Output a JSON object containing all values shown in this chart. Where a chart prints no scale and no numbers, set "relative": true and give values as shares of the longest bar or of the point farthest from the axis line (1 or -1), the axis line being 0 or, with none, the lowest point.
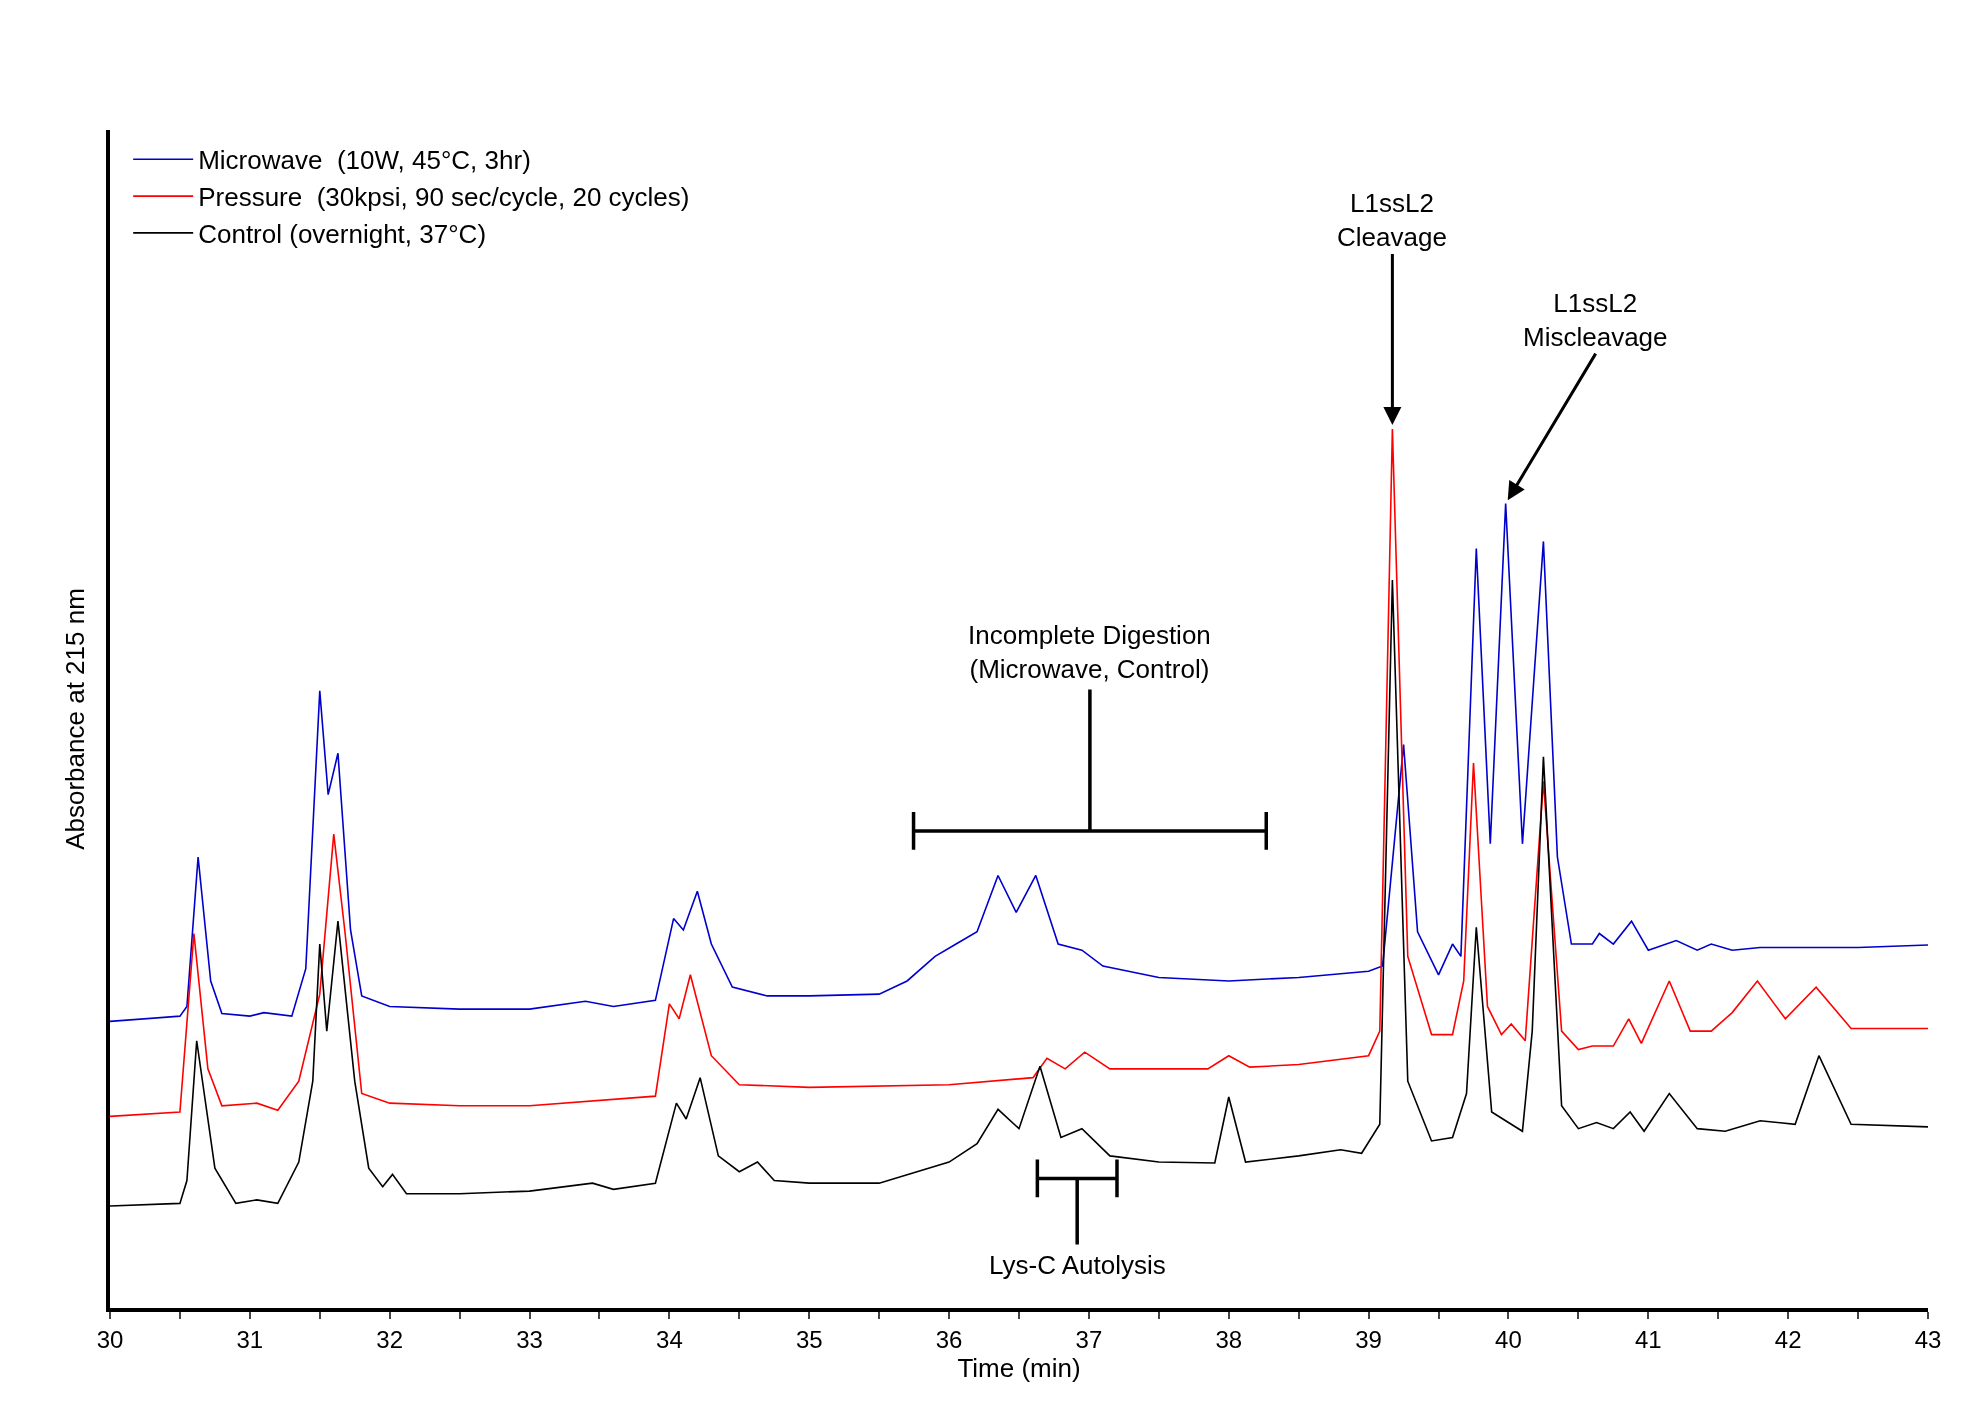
{
  "chart_data": {
    "type": "line",
    "relative": true,
    "xlabel": "Time (min)",
    "ylabel": "Absorbance at 215 nm",
    "xlim": [
      30,
      43
    ],
    "xticks": [
      30,
      {
        "value": 30.5,
        "label": null
      },
      31,
      {
        "value": 31.5,
        "label": null
      },
      32,
      {
        "value": 32.5,
        "label": null
      },
      33,
      {
        "value": 33.5,
        "label": null
      },
      34,
      {
        "value": 34.5,
        "label": null
      },
      35,
      {
        "value": 35.5,
        "label": null
      },
      36,
      {
        "value": 36.5,
        "label": null
      },
      37,
      {
        "value": 37.5,
        "label": null
      },
      38,
      {
        "value": 38.5,
        "label": null
      },
      39,
      {
        "value": 39.5,
        "label": null
      },
      40,
      {
        "value": 40.5,
        "label": null
      },
      41,
      {
        "value": 41.5,
        "label": null
      },
      42,
      {
        "value": 42.5,
        "label": null
      },
      43
    ],
    "legend": "top left",
    "marker": "none",
    "line_style": "solid",
    "series": [
      {
        "name": "Microwave  (10W, 45°C, 3hr)",
        "color": "#0000cc",
        "x": [
          30.0,
          30.5,
          30.55,
          30.63,
          30.72,
          30.8,
          31.0,
          31.1,
          31.3,
          31.4,
          31.5,
          31.56,
          31.63,
          31.72,
          31.8,
          32.0,
          32.5,
          33.0,
          33.4,
          33.6,
          33.9,
          34.03,
          34.1,
          34.2,
          34.3,
          34.45,
          34.7,
          35.0,
          35.5,
          35.7,
          35.9,
          36.05,
          36.2,
          36.35,
          36.48,
          36.62,
          36.78,
          36.95,
          37.1,
          37.5,
          38.0,
          38.5,
          39.0,
          39.1,
          39.25,
          39.35,
          39.5,
          39.6,
          39.66,
          39.77,
          39.87,
          39.98,
          40.1,
          40.25,
          40.35,
          40.45,
          40.6,
          40.65,
          40.75,
          40.88,
          41.0,
          41.2,
          41.35,
          41.45,
          41.6,
          41.8,
          42.5,
          43.0
        ],
        "values": [
          0.326,
          0.332,
          0.343,
          0.513,
          0.372,
          0.335,
          0.332,
          0.336,
          0.332,
          0.386,
          0.702,
          0.584,
          0.631,
          0.43,
          0.355,
          0.343,
          0.34,
          0.34,
          0.349,
          0.343,
          0.35,
          0.443,
          0.43,
          0.474,
          0.414,
          0.365,
          0.355,
          0.355,
          0.357,
          0.372,
          0.4,
          0.414,
          0.428,
          0.492,
          0.45,
          0.492,
          0.414,
          0.407,
          0.389,
          0.376,
          0.372,
          0.376,
          0.383,
          0.389,
          0.641,
          0.428,
          0.379,
          0.414,
          0.4,
          0.864,
          0.528,
          0.915,
          0.528,
          0.872,
          0.513,
          0.414,
          0.414,
          0.426,
          0.414,
          0.44,
          0.407,
          0.418,
          0.407,
          0.414,
          0.407,
          0.41,
          0.41,
          0.413
        ]
      },
      {
        "name": "Pressure  (30kpsi, 90 sec/cycle, 20 cycles)",
        "color": "#ff0000",
        "x": [
          30.0,
          30.5,
          30.6,
          30.7,
          30.8,
          31.05,
          31.2,
          31.35,
          31.5,
          31.6,
          31.68,
          31.8,
          32.0,
          32.5,
          33.0,
          33.9,
          34.0,
          34.07,
          34.15,
          34.3,
          34.5,
          35.0,
          36.0,
          36.6,
          36.7,
          36.83,
          36.97,
          37.15,
          37.5,
          37.85,
          38.0,
          38.15,
          38.5,
          39.0,
          39.08,
          39.17,
          39.28,
          39.45,
          39.6,
          39.68,
          39.75,
          39.85,
          39.95,
          40.02,
          40.12,
          40.25,
          40.38,
          40.5,
          40.6,
          40.75,
          40.86,
          40.95,
          41.15,
          41.3,
          41.45,
          41.6,
          41.78,
          41.98,
          42.2,
          42.45,
          43.0
        ],
        "values": [
          0.218,
          0.223,
          0.426,
          0.272,
          0.23,
          0.233,
          0.225,
          0.258,
          0.357,
          0.539,
          0.428,
          0.244,
          0.233,
          0.23,
          0.23,
          0.241,
          0.346,
          0.329,
          0.379,
          0.287,
          0.254,
          0.251,
          0.254,
          0.262,
          0.284,
          0.272,
          0.291,
          0.272,
          0.272,
          0.272,
          0.287,
          0.274,
          0.277,
          0.287,
          0.315,
          1.0,
          0.4,
          0.311,
          0.311,
          0.372,
          0.62,
          0.343,
          0.311,
          0.323,
          0.304,
          0.599,
          0.315,
          0.294,
          0.298,
          0.298,
          0.329,
          0.301,
          0.372,
          0.315,
          0.315,
          0.336,
          0.372,
          0.329,
          0.365,
          0.318,
          0.318
        ]
      },
      {
        "name": "Control (overnight, 37°C)",
        "color": "#000000",
        "x": [
          30.0,
          30.5,
          30.55,
          30.62,
          30.75,
          30.9,
          31.05,
          31.2,
          31.35,
          31.45,
          31.5,
          31.55,
          31.63,
          31.75,
          31.85,
          31.95,
          32.02,
          32.12,
          32.5,
          33.0,
          33.45,
          33.6,
          33.9,
          34.05,
          34.12,
          34.22,
          34.35,
          34.5,
          34.63,
          34.75,
          35.0,
          35.5,
          36.0,
          36.2,
          36.35,
          36.5,
          36.65,
          36.8,
          36.95,
          37.15,
          37.5,
          37.9,
          38.0,
          38.12,
          38.5,
          38.8,
          38.95,
          39.08,
          39.17,
          39.28,
          39.45,
          39.6,
          39.7,
          39.77,
          39.88,
          40.1,
          40.17,
          40.25,
          40.38,
          40.5,
          40.63,
          40.75,
          40.87,
          40.97,
          41.15,
          41.35,
          41.55,
          41.8,
          42.05,
          42.22,
          42.45,
          43.0
        ],
        "values": [
          0.116,
          0.119,
          0.145,
          0.304,
          0.159,
          0.119,
          0.123,
          0.119,
          0.166,
          0.258,
          0.414,
          0.315,
          0.44,
          0.258,
          0.159,
          0.138,
          0.152,
          0.13,
          0.13,
          0.133,
          0.142,
          0.135,
          0.142,
          0.233,
          0.215,
          0.262,
          0.173,
          0.155,
          0.166,
          0.145,
          0.142,
          0.142,
          0.166,
          0.187,
          0.226,
          0.204,
          0.275,
          0.194,
          0.204,
          0.173,
          0.166,
          0.165,
          0.24,
          0.166,
          0.173,
          0.18,
          0.176,
          0.209,
          0.828,
          0.258,
          0.19,
          0.194,
          0.244,
          0.433,
          0.223,
          0.201,
          0.315,
          0.627,
          0.23,
          0.204,
          0.211,
          0.204,
          0.223,
          0.201,
          0.244,
          0.204,
          0.201,
          0.213,
          0.209,
          0.287,
          0.209,
          0.206
        ]
      }
    ],
    "annotations": [
      {
        "text": "L1ssL2\nCleavage",
        "x": 39.17,
        "y": 1.0
      },
      {
        "text": "L1ssL2\nMiscleavage",
        "x": 39.98,
        "y": 0.915
      },
      "Incomplete Digestion\n(Microwave, Control)",
      "Lys-C Autolysis"
    ]
  }
}
